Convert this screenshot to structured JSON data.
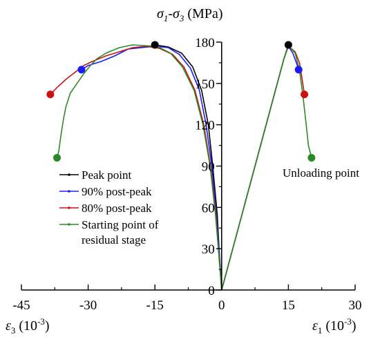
{
  "chart_data": {
    "type": "line",
    "title": "",
    "xlabel_left": {
      "symbol": "ε",
      "sub": "3",
      "unit": "(10",
      "sup": "-3",
      "end": ")"
    },
    "xlabel_right": {
      "symbol": "ε",
      "sub": "1",
      "unit": "(10",
      "sup": "-3",
      "end": ")"
    },
    "ylabel": {
      "s1": "σ",
      "sub1": "1",
      "dash": "-",
      "s2": "σ",
      "sub2": "3",
      "unit": " (MPa)"
    },
    "xlim": [
      -45,
      30
    ],
    "ylim": [
      0,
      180
    ],
    "x_ticks": [
      -45,
      -30,
      -15,
      0,
      15,
      30
    ],
    "x_tick_labels": [
      "-45",
      "-30",
      "-15",
      "0",
      "15",
      "30"
    ],
    "y_ticks": [
      0,
      30,
      60,
      90,
      120,
      150,
      180
    ],
    "y_tick_labels": [
      "0",
      "30",
      "60",
      "90",
      "120",
      "150",
      "180"
    ],
    "annotation": "Unloading point",
    "grid": false,
    "legend_position": "center-left",
    "series": [
      {
        "name": "Peak point",
        "color": "#000000",
        "lateral": [
          [
            0,
            0
          ],
          [
            -0.5,
            25
          ],
          [
            -1,
            55
          ],
          [
            -2,
            90
          ],
          [
            -3,
            120
          ],
          [
            -4.5,
            145
          ],
          [
            -6.5,
            162
          ],
          [
            -9,
            172
          ],
          [
            -12,
            176.5
          ],
          [
            -15,
            178
          ]
        ],
        "axial": [
          [
            0,
            0
          ],
          [
            2.5,
            30
          ],
          [
            5,
            60
          ],
          [
            7.5,
            90
          ],
          [
            10,
            120
          ],
          [
            12.5,
            150
          ],
          [
            14,
            168
          ],
          [
            15,
            178
          ]
        ]
      },
      {
        "name": "90% post-peak",
        "color": "#1a1aff",
        "lateral": [
          [
            0,
            0
          ],
          [
            -0.5,
            25
          ],
          [
            -1.2,
            55
          ],
          [
            -2.2,
            90
          ],
          [
            -3.5,
            120
          ],
          [
            -5,
            145
          ],
          [
            -7,
            161
          ],
          [
            -9.5,
            171
          ],
          [
            -12,
            176
          ],
          [
            -15,
            177
          ],
          [
            -18,
            176
          ],
          [
            -21,
            175
          ],
          [
            -24,
            170
          ],
          [
            -27,
            166
          ],
          [
            -30,
            163
          ],
          [
            -31.5,
            160
          ]
        ],
        "axial": [
          [
            0,
            0
          ],
          [
            2.5,
            30
          ],
          [
            5,
            60
          ],
          [
            7.5,
            90
          ],
          [
            10,
            120
          ],
          [
            12.5,
            150
          ],
          [
            14,
            168
          ],
          [
            15,
            177
          ],
          [
            16,
            172
          ],
          [
            16.8,
            165
          ],
          [
            17.3,
            160
          ]
        ]
      },
      {
        "name": "80% post-peak",
        "color": "#cc1111",
        "lateral": [
          [
            0,
            0
          ],
          [
            -0.6,
            25
          ],
          [
            -1.3,
            55
          ],
          [
            -2.5,
            90
          ],
          [
            -4,
            120
          ],
          [
            -6,
            145
          ],
          [
            -8.5,
            162
          ],
          [
            -11,
            171
          ],
          [
            -14,
            175.5
          ],
          [
            -17,
            177
          ],
          [
            -20,
            176
          ],
          [
            -23,
            173
          ],
          [
            -26,
            170
          ],
          [
            -29,
            166
          ],
          [
            -31,
            163
          ],
          [
            -33,
            158
          ],
          [
            -35,
            153
          ],
          [
            -37,
            147
          ],
          [
            -38.5,
            142
          ]
        ],
        "axial": [
          [
            0,
            0
          ],
          [
            2.5,
            30
          ],
          [
            5,
            60
          ],
          [
            7.5,
            90
          ],
          [
            10,
            120
          ],
          [
            12.5,
            150
          ],
          [
            14,
            168
          ],
          [
            15,
            177
          ],
          [
            16.5,
            173
          ],
          [
            17.5,
            165
          ],
          [
            18,
            155
          ],
          [
            18.6,
            142
          ]
        ]
      },
      {
        "name": "Starting point of residual stage",
        "color": "#2a8a2a",
        "lateral": [
          [
            0,
            0
          ],
          [
            -0.6,
            25
          ],
          [
            -1.4,
            55
          ],
          [
            -2.6,
            90
          ],
          [
            -4.2,
            120
          ],
          [
            -6.2,
            145
          ],
          [
            -8.8,
            162
          ],
          [
            -11.5,
            172
          ],
          [
            -14.5,
            177
          ],
          [
            -17.5,
            177.5
          ],
          [
            -20,
            178
          ],
          [
            -23,
            176
          ],
          [
            -26,
            172
          ],
          [
            -28,
            168
          ],
          [
            -29.5,
            163
          ],
          [
            -31,
            157
          ],
          [
            -32.5,
            150
          ],
          [
            -34,
            143
          ],
          [
            -35,
            133
          ],
          [
            -35.5,
            125
          ],
          [
            -36,
            115
          ],
          [
            -36.3,
            108
          ],
          [
            -36.6,
            101
          ],
          [
            -37,
            96
          ]
        ],
        "axial": [
          [
            0,
            0
          ],
          [
            2.5,
            30
          ],
          [
            5,
            60
          ],
          [
            7.5,
            90
          ],
          [
            10,
            120
          ],
          [
            12.5,
            150
          ],
          [
            14,
            168
          ],
          [
            15,
            177.5
          ],
          [
            16.5,
            172
          ],
          [
            17.5,
            160
          ],
          [
            18.3,
            140
          ],
          [
            19,
            120
          ],
          [
            19.5,
            105
          ],
          [
            20.2,
            96
          ]
        ]
      }
    ],
    "marker_points": [
      {
        "series": "Peak point",
        "points": [
          [
            -15,
            178
          ],
          [
            15,
            178
          ]
        ]
      },
      {
        "series": "90% post-peak",
        "points": [
          [
            -31.5,
            160
          ],
          [
            17.3,
            160
          ]
        ]
      },
      {
        "series": "80% post-peak",
        "points": [
          [
            -38.5,
            142
          ],
          [
            18.6,
            142
          ]
        ]
      },
      {
        "series": "Starting point of residual stage",
        "points": [
          [
            -37,
            96
          ],
          [
            20.2,
            96
          ]
        ]
      }
    ]
  }
}
